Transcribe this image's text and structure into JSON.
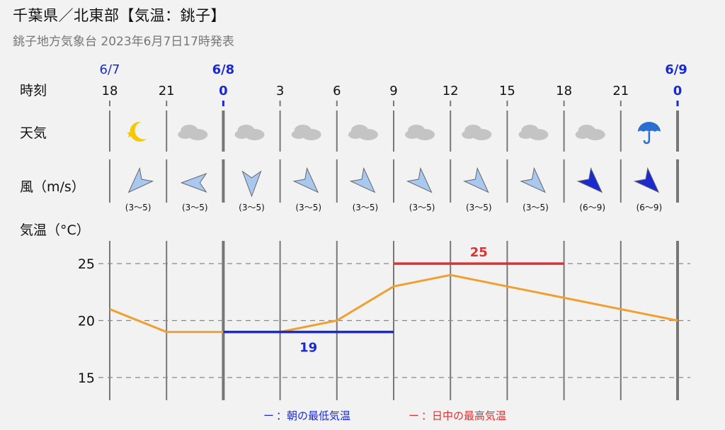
{
  "header": {
    "title": "千葉県／北東部【気温：銚子】",
    "subtitle": "銚子地方気象台 2023年6月7日17時発表"
  },
  "row_labels": {
    "time": "時刻",
    "weather": "天気",
    "wind": "風（m/s）",
    "temperature": "気温（°C）"
  },
  "columns": [
    {
      "hour": "18",
      "date": "6/7",
      "weather": "moon-star-icon",
      "wind_dir": "SW",
      "wind_speed": "(3〜5)",
      "wind_level": "light"
    },
    {
      "hour": "21",
      "date": "",
      "weather": "cloud-icon",
      "wind_dir": "W",
      "wind_speed": "(3〜5)",
      "wind_level": "light"
    },
    {
      "hour": "0",
      "date": "6/8",
      "weather": "cloud-icon",
      "wind_dir": "S",
      "wind_speed": "(3〜5)",
      "wind_level": "light",
      "day_start": true
    },
    {
      "hour": "3",
      "date": "",
      "weather": "cloud-icon",
      "wind_dir": "SE",
      "wind_speed": "(3〜5)",
      "wind_level": "light"
    },
    {
      "hour": "6",
      "date": "",
      "weather": "cloud-icon",
      "wind_dir": "SE",
      "wind_speed": "(3〜5)",
      "wind_level": "light"
    },
    {
      "hour": "9",
      "date": "",
      "weather": "cloud-icon",
      "wind_dir": "SE",
      "wind_speed": "(3〜5)",
      "wind_level": "light"
    },
    {
      "hour": "12",
      "date": "",
      "weather": "cloud-icon",
      "wind_dir": "SE",
      "wind_speed": "(3〜5)",
      "wind_level": "light"
    },
    {
      "hour": "15",
      "date": "",
      "weather": "cloud-icon",
      "wind_dir": "SE",
      "wind_speed": "(3〜5)",
      "wind_level": "light"
    },
    {
      "hour": "18",
      "date": "",
      "weather": "cloud-icon",
      "wind_dir": "SE",
      "wind_speed": "(6〜9)",
      "wind_level": "strong"
    },
    {
      "hour": "21",
      "date": "",
      "weather": "umbrella-icon",
      "wind_dir": "SE",
      "wind_speed": "(6〜9)",
      "wind_level": "strong"
    },
    {
      "hour": "0",
      "date": "6/9",
      "day_start": true
    }
  ],
  "colors": {
    "temperature_line": "#f0a030",
    "min_line": "#1a2ad0",
    "max_line": "#e03030",
    "wind_light": "#a9c8f0",
    "wind_strong": "#1a2ad0",
    "moon": "#f5c800",
    "cloud": "#c4c4c4",
    "umbrella": "#2a6fd0"
  },
  "chart_data": {
    "type": "line",
    "x": [
      "18",
      "21",
      "0",
      "3",
      "6",
      "9",
      "12",
      "15",
      "18",
      "21",
      "0"
    ],
    "series": [
      {
        "values": [
          21,
          19,
          19,
          19,
          20,
          23,
          24,
          23,
          22,
          21,
          20
        ]
      }
    ],
    "min_temp": {
      "value": 19,
      "label": "19",
      "from_index": 2,
      "to_index": 5
    },
    "max_temp": {
      "value": 25,
      "label": "25",
      "from_index": 5,
      "to_index": 8
    },
    "ylim": [
      13,
      27
    ],
    "yticks": [
      "15",
      "20",
      "25"
    ],
    "grid": "dashed horizontal"
  },
  "legend": {
    "min_marker": "ー",
    "min_label": "：朝の最低気温",
    "max_marker": "ー",
    "max_label": "：日中の最高気温"
  }
}
